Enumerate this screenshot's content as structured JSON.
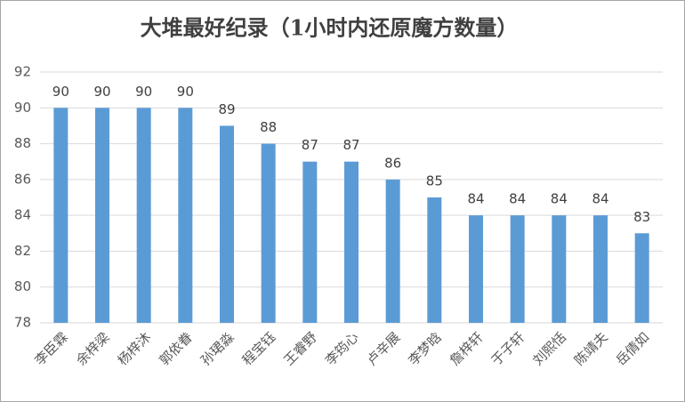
{
  "chart_data": {
    "type": "bar",
    "title": "大堆最好纪录（1小时内还原魔方数量）",
    "categories": [
      "李臣霖",
      "余梓梁",
      "杨梓沐",
      "郭依眷",
      "孙珺淼",
      "程宝钰",
      "王睿野",
      "李筠心",
      "卢辛展",
      "李梦晗",
      "詹梓轩",
      "于子轩",
      "刘熙恬",
      "陈靖夫",
      "岳倩如"
    ],
    "values": [
      90,
      90,
      90,
      90,
      89,
      88,
      87,
      87,
      86,
      85,
      84,
      84,
      84,
      84,
      83
    ],
    "color": "#5b9bd5",
    "ylim": [
      78,
      92
    ],
    "yticks": [
      78,
      80,
      82,
      84,
      86,
      88,
      90,
      92
    ],
    "grid": true
  }
}
